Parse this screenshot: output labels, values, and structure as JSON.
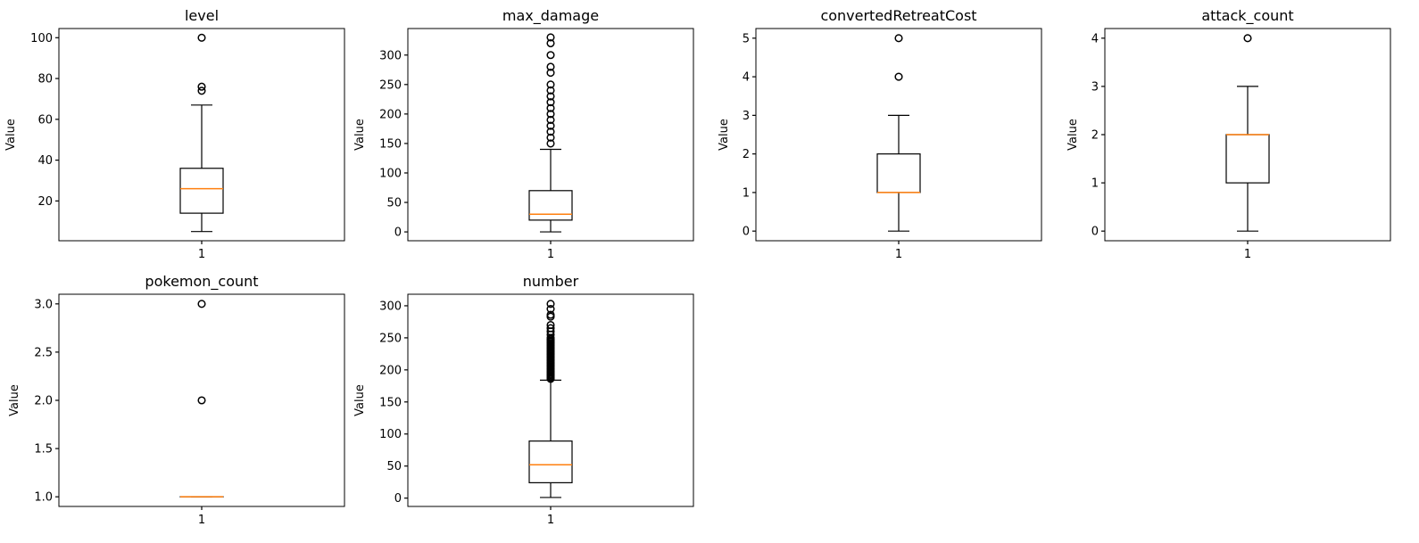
{
  "chart_data": [
    {
      "type": "box",
      "title": "level",
      "ylabel": "Value",
      "x_ticks": [
        "1"
      ],
      "ylim": [
        0.5,
        104.5
      ],
      "y_ticks": [
        20,
        40,
        60,
        80,
        100
      ],
      "y_tick_labels": [
        "20",
        "40",
        "60",
        "80",
        "100"
      ],
      "box": {
        "whisker_low": 5,
        "q1": 14,
        "median": 26,
        "q3": 36,
        "whisker_high": 67
      },
      "outliers": [
        74,
        76,
        100
      ]
    },
    {
      "type": "box",
      "title": "max_damage",
      "ylabel": "Value",
      "x_ticks": [
        "1"
      ],
      "ylim": [
        -15,
        345
      ],
      "y_ticks": [
        0,
        50,
        100,
        150,
        200,
        250,
        300
      ],
      "y_tick_labels": [
        "0",
        "50",
        "100",
        "150",
        "200",
        "250",
        "300"
      ],
      "box": {
        "whisker_low": 0,
        "q1": 20,
        "median": 30,
        "q3": 70,
        "whisker_high": 140
      },
      "outliers": [
        150,
        160,
        170,
        180,
        190,
        200,
        210,
        220,
        230,
        240,
        250,
        270,
        280,
        300,
        320,
        330
      ]
    },
    {
      "type": "box",
      "title": "convertedRetreatCost",
      "ylabel": "Value",
      "x_ticks": [
        "1"
      ],
      "ylim": [
        -0.25,
        5.25
      ],
      "y_ticks": [
        0,
        1,
        2,
        3,
        4,
        5
      ],
      "y_tick_labels": [
        "0",
        "1",
        "2",
        "3",
        "4",
        "5"
      ],
      "box": {
        "whisker_low": 0,
        "q1": 1,
        "median": 1,
        "q3": 2,
        "whisker_high": 3
      },
      "outliers": [
        4,
        5
      ]
    },
    {
      "type": "box",
      "title": "attack_count",
      "ylabel": "Value",
      "x_ticks": [
        "1"
      ],
      "ylim": [
        -0.2,
        4.2
      ],
      "y_ticks": [
        0,
        1,
        2,
        3,
        4
      ],
      "y_tick_labels": [
        "0",
        "1",
        "2",
        "3",
        "4"
      ],
      "box": {
        "whisker_low": 0,
        "q1": 1,
        "median": 2,
        "q3": 2,
        "whisker_high": 3
      },
      "outliers": [
        4
      ]
    },
    {
      "type": "box",
      "title": "pokemon_count",
      "ylabel": "Value",
      "x_ticks": [
        "1"
      ],
      "ylim": [
        0.9,
        3.1
      ],
      "y_ticks": [
        1.0,
        1.5,
        2.0,
        2.5,
        3.0
      ],
      "y_tick_labels": [
        "1.0",
        "1.5",
        "2.0",
        "2.5",
        "3.0"
      ],
      "box": {
        "whisker_low": 1,
        "q1": 1,
        "median": 1,
        "q3": 1,
        "whisker_high": 1
      },
      "outliers": [
        2,
        3
      ]
    },
    {
      "type": "box",
      "title": "number",
      "ylabel": "Value",
      "x_ticks": [
        "1"
      ],
      "ylim": [
        -13,
        318
      ],
      "y_ticks": [
        0,
        50,
        100,
        150,
        200,
        250,
        300
      ],
      "y_tick_labels": [
        "0",
        "50",
        "100",
        "150",
        "200",
        "250",
        "300"
      ],
      "box": {
        "whisker_low": 1,
        "q1": 24,
        "median": 52,
        "q3": 89,
        "whisker_high": 184
      },
      "outliers": [
        186,
        188,
        190,
        192,
        194,
        196,
        198,
        200,
        202,
        204,
        206,
        208,
        210,
        212,
        214,
        216,
        218,
        220,
        222,
        224,
        226,
        228,
        230,
        232,
        234,
        236,
        238,
        240,
        242,
        244,
        246,
        248,
        250,
        255,
        260,
        265,
        270,
        283,
        286,
        295,
        303
      ]
    }
  ],
  "colors": {
    "box": "#000000",
    "median": "#ff7f0e",
    "flier": "#000000",
    "background": "#ffffff"
  }
}
